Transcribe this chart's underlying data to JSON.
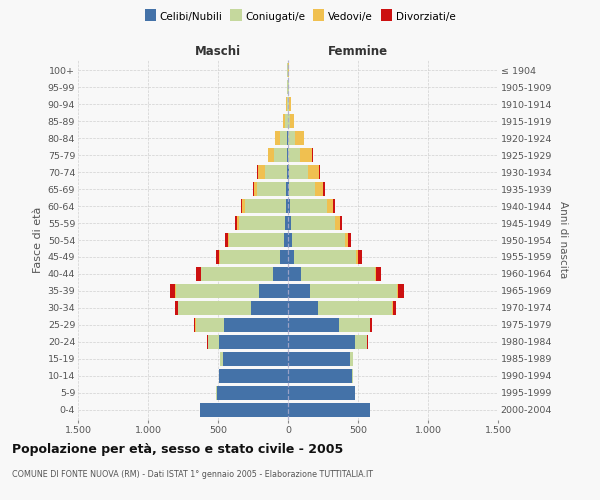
{
  "age_groups": [
    "0-4",
    "5-9",
    "10-14",
    "15-19",
    "20-24",
    "25-29",
    "30-34",
    "35-39",
    "40-44",
    "45-49",
    "50-54",
    "55-59",
    "60-64",
    "65-69",
    "70-74",
    "75-79",
    "80-84",
    "85-89",
    "90-94",
    "95-99",
    "100+"
  ],
  "birth_years": [
    "2000-2004",
    "1995-1999",
    "1990-1994",
    "1985-1989",
    "1980-1984",
    "1975-1979",
    "1970-1974",
    "1965-1969",
    "1960-1964",
    "1955-1959",
    "1950-1954",
    "1945-1949",
    "1940-1944",
    "1935-1939",
    "1930-1934",
    "1925-1929",
    "1920-1924",
    "1915-1919",
    "1910-1914",
    "1905-1909",
    "≤ 1904"
  ],
  "males_celibe": [
    630,
    510,
    490,
    465,
    490,
    460,
    265,
    210,
    110,
    55,
    32,
    22,
    16,
    14,
    10,
    5,
    5,
    3,
    2,
    1,
    1
  ],
  "males_coniugato": [
    0,
    2,
    4,
    18,
    80,
    200,
    520,
    590,
    510,
    430,
    390,
    330,
    290,
    205,
    155,
    95,
    55,
    18,
    8,
    5,
    3
  ],
  "males_vedovo": [
    0,
    0,
    0,
    1,
    2,
    2,
    3,
    5,
    5,
    5,
    10,
    15,
    20,
    25,
    50,
    40,
    30,
    15,
    5,
    2,
    1
  ],
  "males_divorziato": [
    0,
    0,
    0,
    2,
    5,
    12,
    22,
    35,
    35,
    25,
    18,
    15,
    10,
    8,
    5,
    3,
    2,
    0,
    0,
    0,
    0
  ],
  "females_nubile": [
    585,
    480,
    460,
    440,
    475,
    365,
    215,
    160,
    90,
    45,
    28,
    18,
    12,
    8,
    5,
    3,
    2,
    2,
    1,
    1,
    0
  ],
  "females_coniugata": [
    0,
    2,
    4,
    22,
    90,
    220,
    530,
    615,
    530,
    440,
    380,
    320,
    270,
    185,
    135,
    85,
    45,
    12,
    5,
    3,
    2
  ],
  "females_vedova": [
    0,
    0,
    0,
    1,
    2,
    3,
    5,
    8,
    10,
    15,
    22,
    30,
    40,
    60,
    80,
    85,
    65,
    28,
    12,
    4,
    2
  ],
  "females_divorziata": [
    0,
    0,
    0,
    2,
    6,
    12,
    22,
    42,
    35,
    28,
    22,
    20,
    15,
    8,
    5,
    3,
    2,
    0,
    0,
    0,
    0
  ],
  "colors_celibe": "#4472a8",
  "colors_coniugato": "#c5d89d",
  "colors_vedovo": "#f0c050",
  "colors_divorziato": "#cc1111",
  "xlim": 1500,
  "title": "Popolazione per età, sesso e stato civile - 2005",
  "subtitle": "COMUNE DI FONTE NUOVA (RM) - Dati ISTAT 1° gennaio 2005 - Elaborazione TUTTITALIA.IT",
  "ylabel_left": "Fasce di età",
  "ylabel_right": "Anni di nascita",
  "label_maschi": "Maschi",
  "label_femmine": "Femmine",
  "legend_labels": [
    "Celibi/Nubili",
    "Coniugati/e",
    "Vedovi/e",
    "Divorziati/e"
  ],
  "xticks": [
    -1500,
    -1000,
    -500,
    0,
    500,
    1000,
    1500
  ],
  "xtick_labels": [
    "1.500",
    "1.000",
    "500",
    "0",
    "500",
    "1.000",
    "1.500"
  ],
  "background_color": "#f8f8f8",
  "grid_color": "#cccccc"
}
